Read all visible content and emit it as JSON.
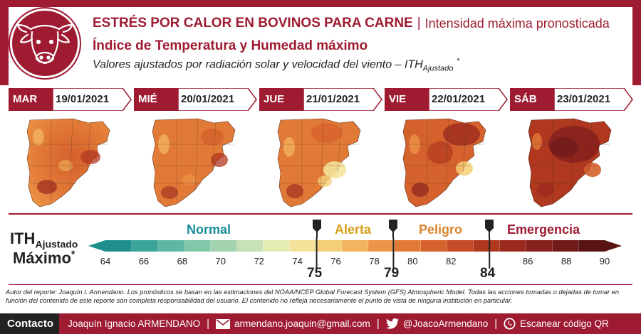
{
  "header": {
    "title": "ESTRÉS POR CALOR EN BOVINOS PARA CARNE",
    "title_separator": "|",
    "title_sub": "Intensidad máxima pronosticada",
    "subtitle": "Índice de Temperatura y Humedad máximo",
    "subtitle2_main": "Valores ajustados por radiación solar y velocidad del viento – ITH",
    "subtitle2_sub": "Ajustado",
    "subtitle2_sup": "*",
    "logo_icon": "cow-head-icon"
  },
  "days": [
    {
      "name": "MAR",
      "date": "19/01/2021"
    },
    {
      "name": "MIÉ",
      "date": "20/01/2021"
    },
    {
      "name": "JUE",
      "date": "21/01/2021"
    },
    {
      "name": "VIE",
      "date": "22/01/2021"
    },
    {
      "name": "SÁB",
      "date": "23/01/2021"
    }
  ],
  "legend": {
    "label_main": "ITH",
    "label_sub": "Ajustado",
    "label_line2": "Máximo",
    "label_sup": "*",
    "categories": [
      {
        "name": "Normal",
        "color": "#1a8c99"
      },
      {
        "name": "Alerta",
        "color": "#d4a017"
      },
      {
        "name": "Peligro",
        "color": "#d9852b"
      },
      {
        "name": "Emergencia",
        "color": "#9e1b32"
      }
    ],
    "ticks": [
      "64",
      "66",
      "68",
      "70",
      "72",
      "74",
      "76",
      "78",
      "80",
      "82",
      "86",
      "88",
      "90"
    ],
    "thresholds": [
      "75",
      "79",
      "84"
    ],
    "scale_min": 64,
    "scale_max": 90,
    "colors": [
      "#1f8f8c",
      "#3aa39a",
      "#5db7a4",
      "#80c6a8",
      "#a3d3ae",
      "#c6e1b5",
      "#e4ebb3",
      "#f3e39a",
      "#f5cf78",
      "#f2b35c",
      "#ec9447",
      "#e27a37",
      "#d5612c",
      "#c44b25",
      "#b0381f",
      "#9b2a1e",
      "#86201d",
      "#701a1a",
      "#5a1414"
    ]
  },
  "author": "Autor del reporte: Joaquín I. Armendano. Los pronósticos se basan en las estimaciones del NOAA/NCEP Global Forecast System (GFS) Atmospheric Model. Todas las acciones tomadas o dejadas de tomar en función del contenido de este reporte son completa responsabilidad del usuario. El contenido no refleja necesariamente el punto de vista de ninguna institución en particular.",
  "contact": {
    "label": "Contacto",
    "name": "Joaquín Ignacio ARMENDANO",
    "email": "armendano.joaquin@gmail.com",
    "twitter": "@JoacoArmendano",
    "qr": "Escanear código QR",
    "separator": "|",
    "icons": [
      "mail-icon",
      "twitter-icon",
      "whatsapp-icon"
    ]
  },
  "colors": {
    "brand": "#9e1b32",
    "dark": "#222222"
  }
}
